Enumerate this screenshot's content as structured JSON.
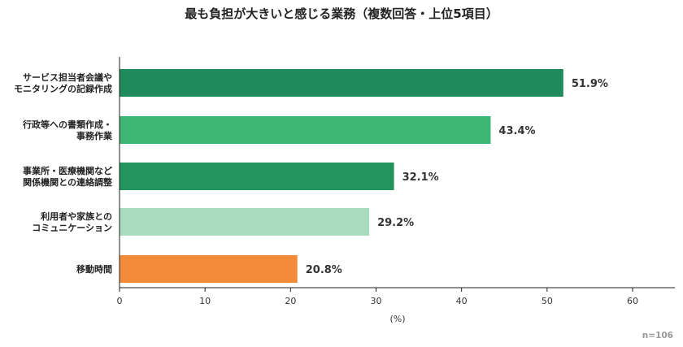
{
  "chart_data": {
    "type": "bar",
    "orientation": "horizontal",
    "title": "最も負担が大きいと感じる業務（複数回答・上位5項目）",
    "xlabel": "(%)",
    "ylabel": "",
    "xlim": [
      0,
      60
    ],
    "xticks": [
      0,
      10,
      20,
      30,
      40,
      50,
      60
    ],
    "grid": false,
    "note": "n=106",
    "categories": [
      [
        "サービス担当者会議や",
        "モニタリングの記録作成"
      ],
      [
        "行政等への書類作成・",
        "事務作業"
      ],
      [
        "事業所・医療機関など",
        "関係機関との連絡調整"
      ],
      [
        "利用者や家族との",
        "コミュニケーション"
      ],
      [
        "移動時間"
      ]
    ],
    "values": [
      51.9,
      43.4,
      32.1,
      29.2,
      20.8
    ],
    "value_labels": [
      "51.9%",
      "43.4%",
      "32.1%",
      "29.2%",
      "20.8%"
    ],
    "colors": [
      "#1f8a5b",
      "#3db673",
      "#24945e",
      "#a8dcbc",
      "#f28b3a"
    ]
  }
}
